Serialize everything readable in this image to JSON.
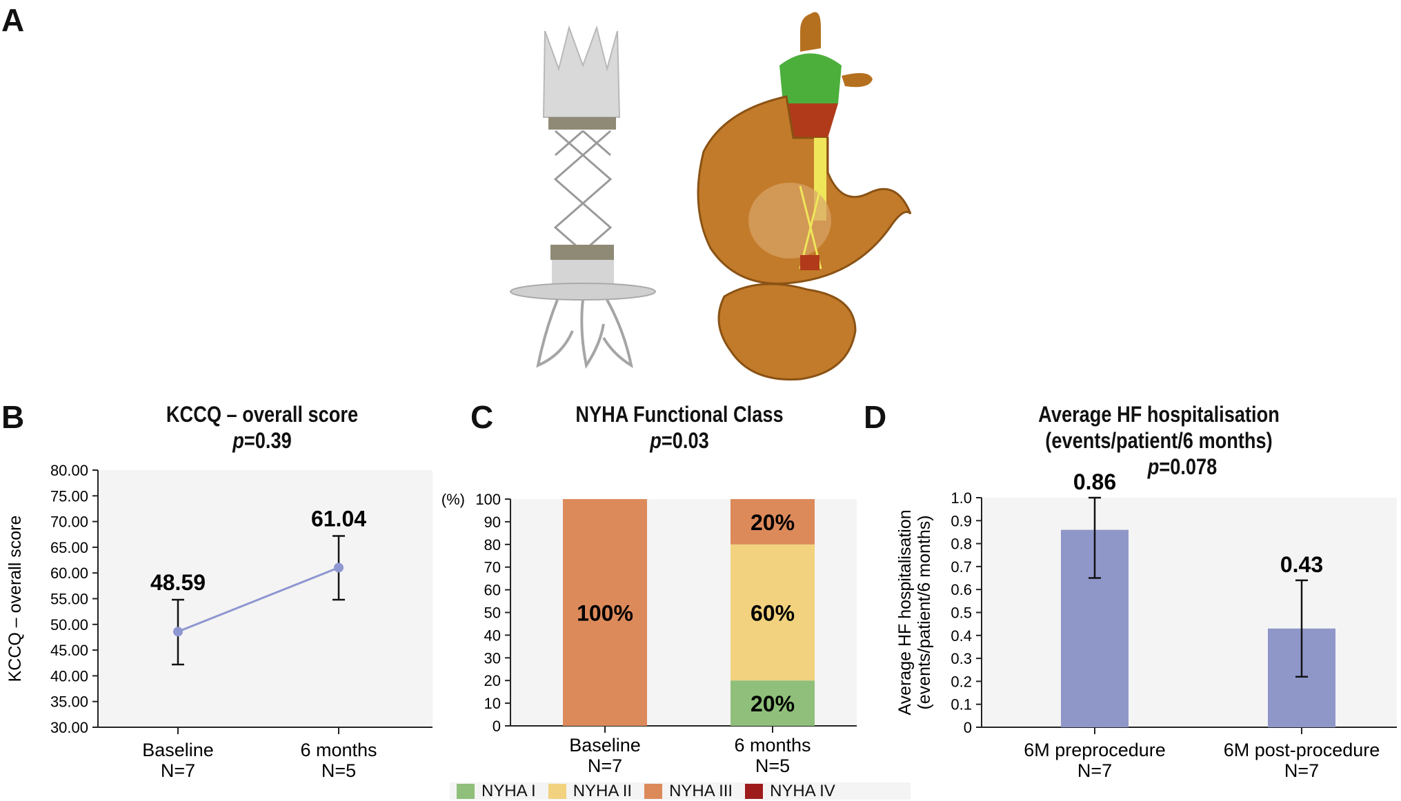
{
  "panels": {
    "a": {
      "letter": "A"
    },
    "b": {
      "letter": "B",
      "title": "KCCQ – overall score",
      "p_prefix": "p",
      "p_value": "=0.39"
    },
    "c": {
      "letter": "C",
      "title": "NYHA Functional Class",
      "p_prefix": "p",
      "p_value": "=0.03"
    },
    "d": {
      "letter": "D",
      "title_line1": "Average HF hospitalisation",
      "title_line2": "(events/patient/6 months)",
      "p_prefix": "p",
      "p_value": "=0.078"
    }
  },
  "colors": {
    "nyha1": "#8fbf7a",
    "nyha2": "#f2d27e",
    "nyha3": "#dd8a5b",
    "nyha4": "#9e1b1b",
    "line": "#8f97d0",
    "bar": "#8f97c9",
    "plot_bg": "#f4f4f4"
  },
  "chart_data": [
    {
      "type": "line",
      "ylabel": "KCCQ – overall score",
      "ylim": [
        30,
        80
      ],
      "yticks": [
        "80.00",
        "75.00",
        "70.00",
        "65.00",
        "60.00",
        "55.00",
        "50.00",
        "45.00",
        "40.00",
        "35.00",
        "30.00"
      ],
      "categories": [
        {
          "label": "Baseline",
          "n": "N=7"
        },
        {
          "label": "6 months",
          "n": "N=5"
        }
      ],
      "values": [
        48.59,
        61.04
      ],
      "value_labels": [
        "48.59",
        "61.04"
      ],
      "error_low": [
        42.2,
        54.8
      ],
      "error_high": [
        54.8,
        67.2
      ],
      "grid": false
    },
    {
      "type": "bar",
      "stacked": true,
      "yaxis_unit": "(%)",
      "ylim": [
        0,
        100
      ],
      "yticks": [
        "100",
        "90",
        "80",
        "70",
        "60",
        "50",
        "40",
        "30",
        "20",
        "10",
        "0"
      ],
      "categories": [
        {
          "label": "Baseline",
          "n": "N=7"
        },
        {
          "label": "6 months",
          "n": "N=5"
        }
      ],
      "series": [
        {
          "name": "NYHA I",
          "values": [
            0,
            20
          ],
          "labels": [
            "",
            "20%"
          ]
        },
        {
          "name": "NYHA II",
          "values": [
            0,
            60
          ],
          "labels": [
            "",
            "60%"
          ]
        },
        {
          "name": "NYHA III",
          "values": [
            100,
            20
          ],
          "labels": [
            "100%",
            "20%"
          ]
        },
        {
          "name": "NYHA IV",
          "values": [
            0,
            0
          ],
          "labels": [
            "",
            ""
          ]
        }
      ],
      "legend_position": "bottom"
    },
    {
      "type": "bar",
      "ylabel_line1": "Average HF hospitalisation",
      "ylabel_line2": "(events/patient/6 months)",
      "ylim": [
        0,
        1.0
      ],
      "yticks": [
        "1.0",
        "0.9",
        "0.8",
        "0.7",
        "0.6",
        "0.5",
        "0.4",
        "0.3",
        "0.2",
        "0.1",
        "0"
      ],
      "categories": [
        {
          "label": "6M preprocedure",
          "n": "N=7"
        },
        {
          "label": "6M post-procedure",
          "n": "N=7"
        }
      ],
      "values": [
        0.86,
        0.43
      ],
      "value_labels": [
        "0.86",
        "0.43"
      ],
      "error_low": [
        0.65,
        0.22
      ],
      "error_high": [
        1.0,
        0.64
      ]
    }
  ]
}
